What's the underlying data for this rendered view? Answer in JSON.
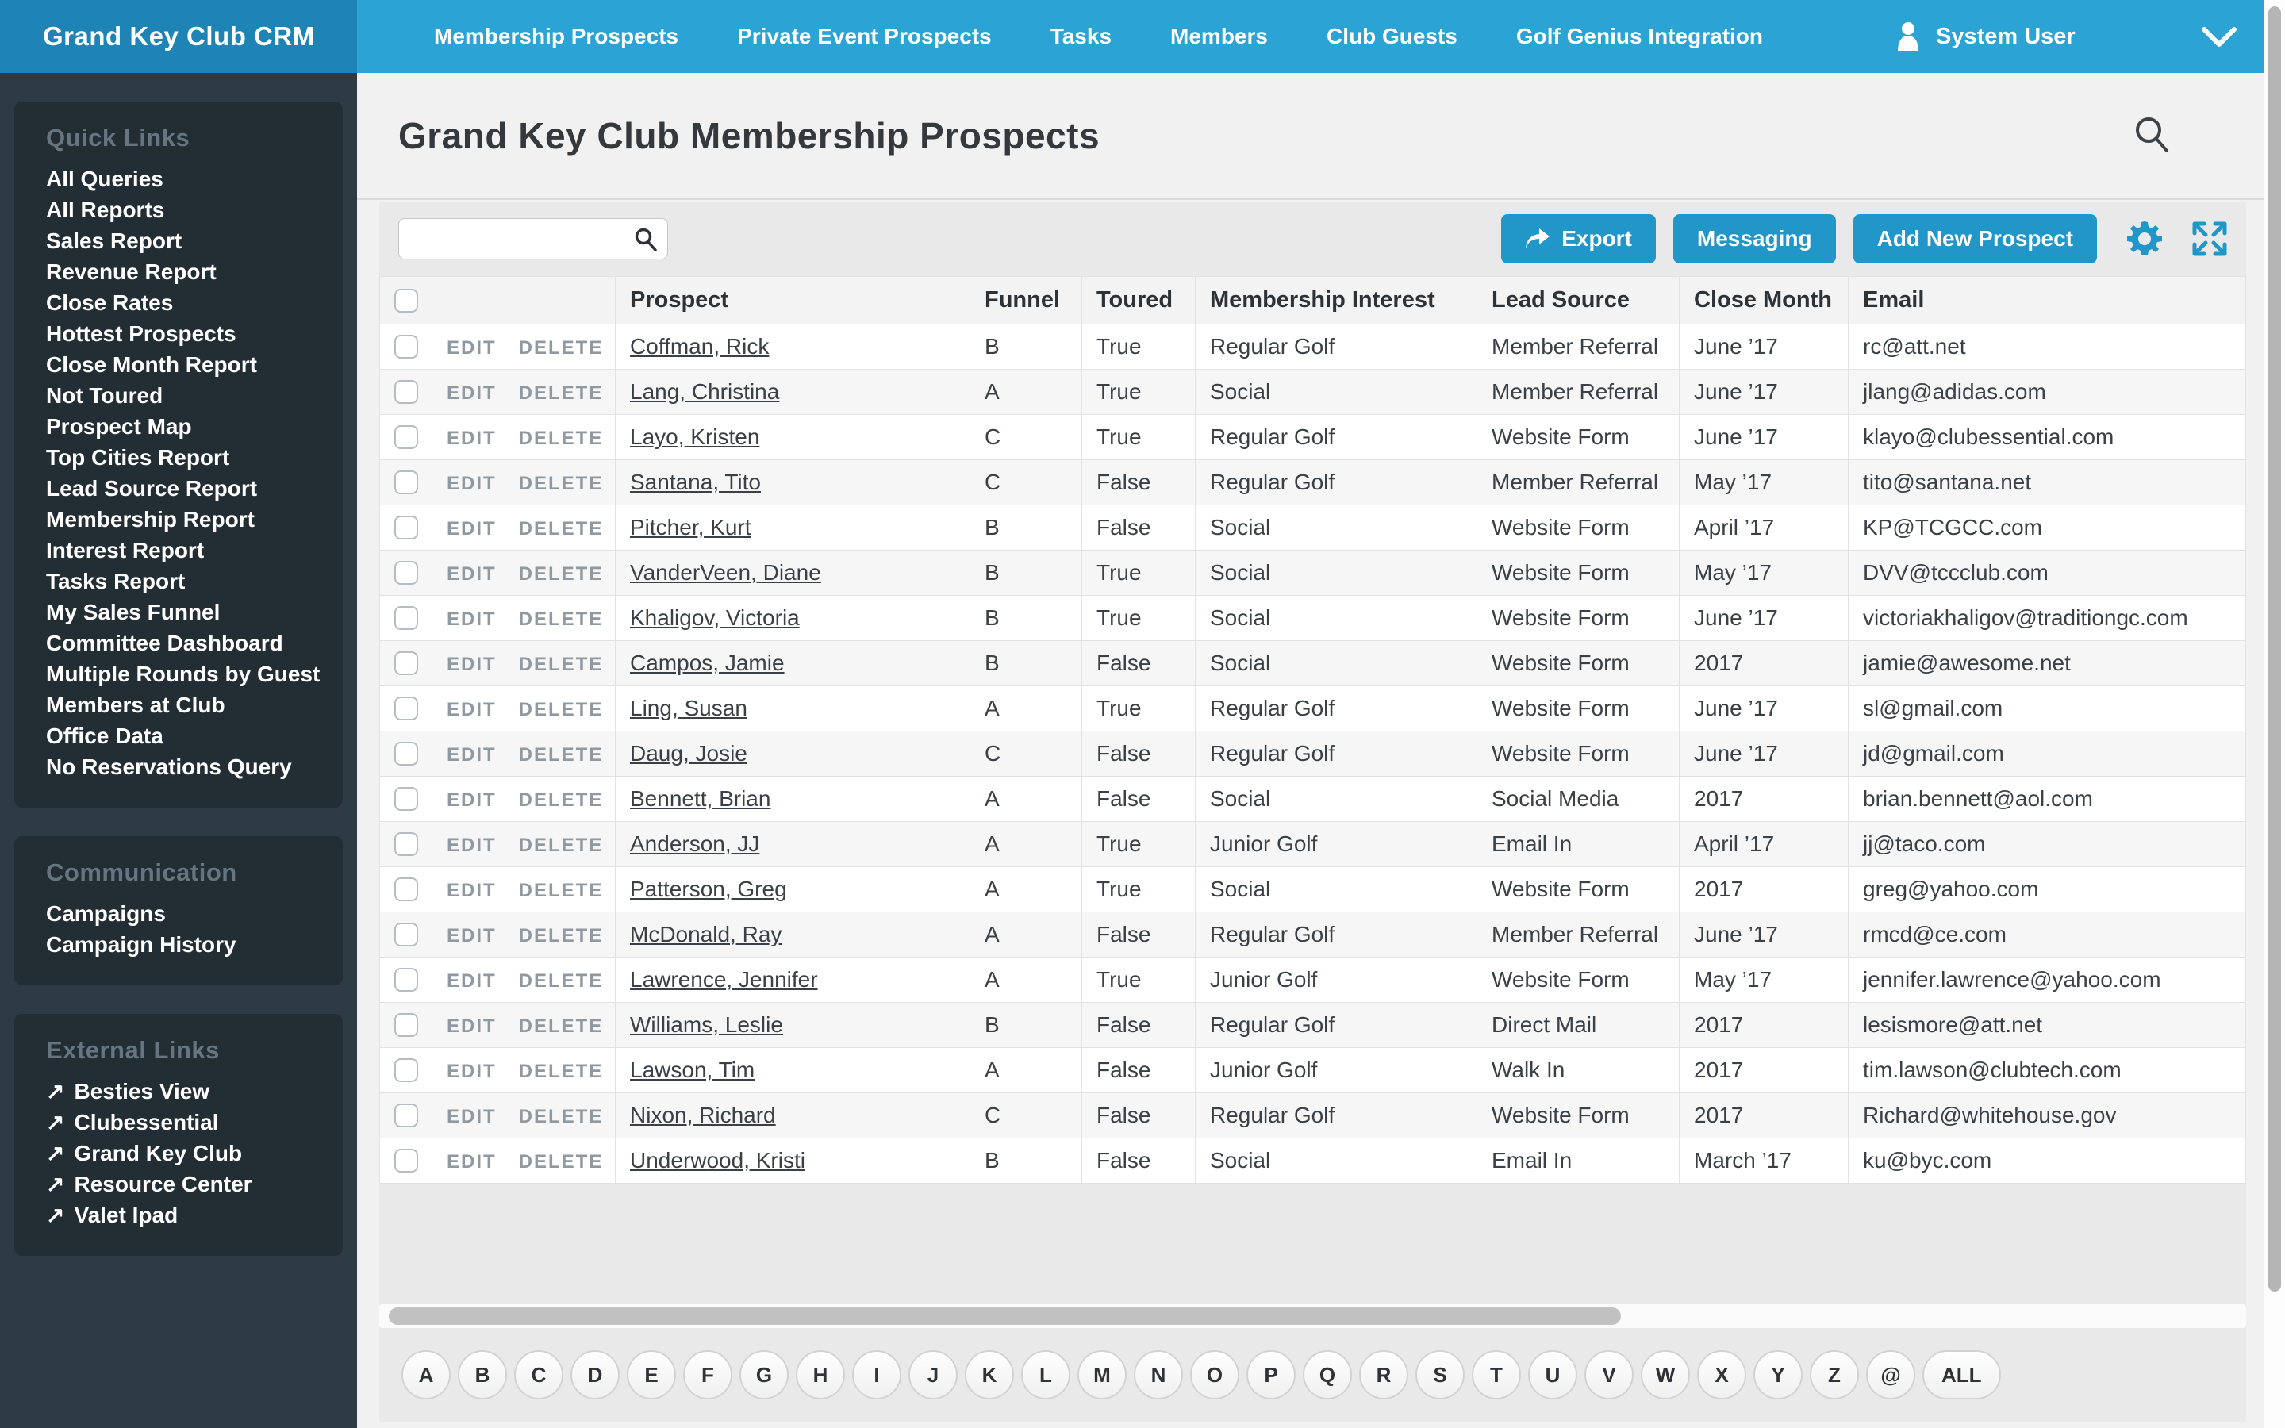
{
  "brand": "Grand Key Club CRM",
  "nav": {
    "items": [
      "Membership Prospects",
      "Private Event Prospects",
      "Tasks",
      "Members",
      "Club Guests",
      "Golf Genius Integration"
    ],
    "user_label": "System User"
  },
  "sidebar": {
    "sections": [
      {
        "title": "Quick Links",
        "external": false,
        "items": [
          "All Queries",
          "All Reports",
          "Sales Report",
          "Revenue Report",
          "Close Rates",
          "Hottest Prospects",
          "Close Month Report",
          "Not Toured",
          "Prospect Map",
          "Top Cities Report",
          "Lead Source Report",
          "Membership Report",
          "Interest Report",
          "Tasks Report",
          "My Sales Funnel",
          "Committee Dashboard",
          "Multiple Rounds by Guest",
          "Members at Club",
          "Office Data",
          "No Reservations Query"
        ]
      },
      {
        "title": "Communication",
        "external": false,
        "items": [
          "Campaigns",
          "Campaign History"
        ]
      },
      {
        "title": "External Links",
        "external": true,
        "items": [
          "Besties View",
          "Clubessential",
          "Grand Key Club",
          "Resource Center",
          "Valet Ipad"
        ]
      }
    ]
  },
  "page": {
    "title": "Grand Key Club Membership Prospects"
  },
  "toolbar": {
    "search_value": "",
    "export_label": "Export",
    "messaging_label": "Messaging",
    "add_label": "Add New Prospect"
  },
  "table": {
    "action_labels": [
      "EDIT",
      "DELETE"
    ],
    "headers": [
      "Prospect",
      "Funnel",
      "Toured",
      "Membership Interest",
      "Lead Source",
      "Close Month",
      "Email"
    ],
    "rows": [
      {
        "prospect": "Coffman, Rick",
        "funnel": "B",
        "toured": "True",
        "interest": "Regular Golf",
        "lead_source": "Member Referral",
        "close_month": "June ’17",
        "email": "rc@att.net"
      },
      {
        "prospect": "Lang, Christina",
        "funnel": "A",
        "toured": "True",
        "interest": "Social",
        "lead_source": "Member Referral",
        "close_month": "June ’17",
        "email": "jlang@adidas.com"
      },
      {
        "prospect": "Layo, Kristen",
        "funnel": "C",
        "toured": "True",
        "interest": "Regular Golf",
        "lead_source": "Website Form",
        "close_month": "June ’17",
        "email": "klayo@clubessential.com"
      },
      {
        "prospect": "Santana, Tito",
        "funnel": "C",
        "toured": "False",
        "interest": "Regular Golf",
        "lead_source": "Member Referral",
        "close_month": "May ’17",
        "email": "tito@santana.net"
      },
      {
        "prospect": "Pitcher, Kurt",
        "funnel": "B",
        "toured": "False",
        "interest": "Social",
        "lead_source": "Website Form",
        "close_month": "April ’17",
        "email": "KP@TCGCC.com"
      },
      {
        "prospect": "VanderVeen, Diane",
        "funnel": "B",
        "toured": "True",
        "interest": "Social",
        "lead_source": "Website Form",
        "close_month": "May ’17",
        "email": "DVV@tccclub.com"
      },
      {
        "prospect": "Khaligov, Victoria",
        "funnel": "B",
        "toured": "True",
        "interest": "Social",
        "lead_source": "Website Form",
        "close_month": "June ’17",
        "email": "victoriakhaligov@traditiongc.com"
      },
      {
        "prospect": "Campos, Jamie",
        "funnel": "B",
        "toured": "False",
        "interest": "Social",
        "lead_source": "Website Form",
        "close_month": "2017",
        "email": "jamie@awesome.net"
      },
      {
        "prospect": "Ling, Susan",
        "funnel": "A",
        "toured": "True",
        "interest": "Regular Golf",
        "lead_source": "Website Form",
        "close_month": "June ’17",
        "email": "sl@gmail.com"
      },
      {
        "prospect": "Daug, Josie",
        "funnel": "C",
        "toured": "False",
        "interest": "Regular Golf",
        "lead_source": "Website Form",
        "close_month": "June ’17",
        "email": "jd@gmail.com"
      },
      {
        "prospect": "Bennett, Brian",
        "funnel": "A",
        "toured": "False",
        "interest": "Social",
        "lead_source": "Social Media",
        "close_month": "2017",
        "email": "brian.bennett@aol.com"
      },
      {
        "prospect": "Anderson, JJ",
        "funnel": "A",
        "toured": "True",
        "interest": "Junior Golf",
        "lead_source": "Email In",
        "close_month": "April ’17",
        "email": "jj@taco.com"
      },
      {
        "prospect": "Patterson, Greg",
        "funnel": "A",
        "toured": "True",
        "interest": "Social",
        "lead_source": "Website Form",
        "close_month": "2017",
        "email": "greg@yahoo.com"
      },
      {
        "prospect": "McDonald, Ray",
        "funnel": "A",
        "toured": "False",
        "interest": "Regular Golf",
        "lead_source": "Member Referral",
        "close_month": "June ’17",
        "email": "rmcd@ce.com"
      },
      {
        "prospect": "Lawrence, Jennifer",
        "funnel": "A",
        "toured": "True",
        "interest": "Junior Golf",
        "lead_source": "Website Form",
        "close_month": "May ’17",
        "email": "jennifer.lawrence@yahoo.com"
      },
      {
        "prospect": "Williams, Leslie",
        "funnel": "B",
        "toured": "False",
        "interest": "Regular Golf",
        "lead_source": "Direct Mail",
        "close_month": "2017",
        "email": "lesismore@att.net"
      },
      {
        "prospect": "Lawson, Tim",
        "funnel": "A",
        "toured": "False",
        "interest": "Junior Golf",
        "lead_source": "Walk In",
        "close_month": "2017",
        "email": "tim.lawson@clubtech.com"
      },
      {
        "prospect": "Nixon, Richard",
        "funnel": "C",
        "toured": "False",
        "interest": "Regular Golf",
        "lead_source": "Website Form",
        "close_month": "2017",
        "email": "Richard@whitehouse.gov"
      },
      {
        "prospect": "Underwood, Kristi",
        "funnel": "B",
        "toured": "False",
        "interest": "Social",
        "lead_source": "Email In",
        "close_month": "March ’17",
        "email": "ku@byc.com"
      }
    ]
  },
  "pagination": {
    "letters": [
      "A",
      "B",
      "C",
      "D",
      "E",
      "F",
      "G",
      "H",
      "I",
      "J",
      "K",
      "L",
      "M",
      "N",
      "O",
      "P",
      "Q",
      "R",
      "S",
      "T",
      "U",
      "V",
      "W",
      "X",
      "Y",
      "Z",
      "@"
    ],
    "all_label": "ALL"
  },
  "colors": {
    "nav_blue": "#2ba3d4",
    "logo_blue": "#1d84b5",
    "accent_blue": "#2196c9",
    "sidebar_dark": "#2d3b44",
    "sidebar_panel": "#222d34"
  }
}
